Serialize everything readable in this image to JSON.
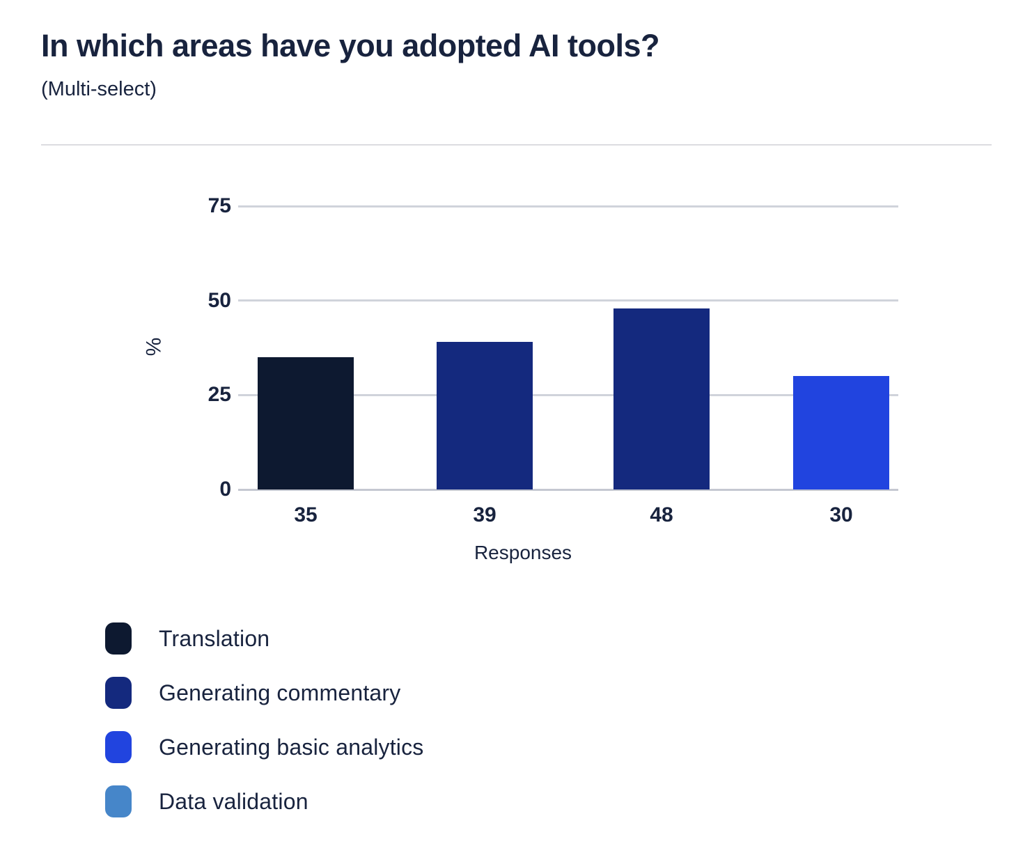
{
  "title": "In which areas have you adopted AI tools?",
  "subtitle": "(Multi-select)",
  "chart_data": {
    "type": "bar",
    "title": "In which areas have you adopted AI tools?",
    "subtitle": "(Multi-select)",
    "categories": [
      "35",
      "39",
      "48",
      "30"
    ],
    "values": [
      35,
      39,
      48,
      30
    ],
    "bar_colors": [
      "#0d1930",
      "#14297e",
      "#14297e",
      "#2144df"
    ],
    "xlabel": "Responses",
    "ylabel": "%",
    "ylim": [
      0,
      75
    ],
    "yticks": [
      0,
      25,
      50,
      75
    ],
    "grid": true,
    "legend_position": "bottom-left",
    "legend": [
      {
        "label": "Translation",
        "color": "#0d1930"
      },
      {
        "label": "Generating commentary",
        "color": "#14297e"
      },
      {
        "label": "Generating basic analytics",
        "color": "#2144df"
      },
      {
        "label": "Data validation",
        "color": "#4686c9"
      }
    ]
  },
  "colors": {
    "text": "#18233e",
    "grid": "#d0d3db",
    "axis": "#c5c8d1",
    "divider": "#dcdce0",
    "background": "#ffffff"
  }
}
